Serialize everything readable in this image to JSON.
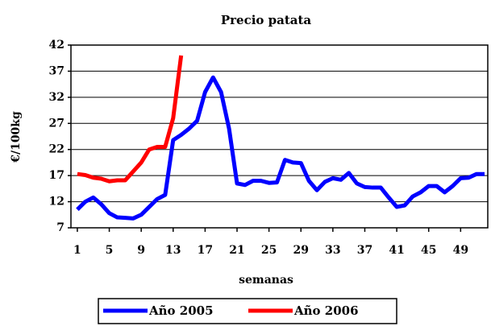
{
  "chart_data": {
    "type": "line",
    "title": "Precio patata",
    "xlabel": "semanas",
    "ylabel": "€/100kg",
    "x": [
      1,
      2,
      3,
      4,
      5,
      6,
      7,
      8,
      9,
      10,
      11,
      12,
      13,
      14,
      15,
      16,
      17,
      18,
      19,
      20,
      21,
      22,
      23,
      24,
      25,
      26,
      27,
      28,
      29,
      30,
      31,
      32,
      33,
      34,
      35,
      36,
      37,
      38,
      39,
      40,
      41,
      42,
      43,
      44,
      45,
      46,
      47,
      48,
      49,
      50,
      51,
      52
    ],
    "xlim": [
      0.2,
      52.4
    ],
    "xticks": [
      1,
      5,
      9,
      13,
      17,
      21,
      25,
      29,
      33,
      37,
      41,
      45,
      49
    ],
    "ylim": [
      7,
      42
    ],
    "yticks": [
      7,
      12,
      17,
      22,
      27,
      32,
      37,
      42
    ],
    "grid": true,
    "legend": "bottom",
    "series": [
      {
        "name": "Año 2005",
        "color": "#0000ff",
        "values": [
          10.5,
          12,
          12.8,
          11.5,
          9.8,
          9,
          8.9,
          8.8,
          9.5,
          11,
          12.5,
          13.3,
          23.8,
          24.8,
          26,
          27.5,
          33,
          35.8,
          33,
          26,
          15.5,
          15.2,
          16,
          16,
          15.6,
          15.7,
          20,
          19.5,
          19.4,
          16,
          14.2,
          15.8,
          16.5,
          16.2,
          17.5,
          15.5,
          14.8,
          14.7,
          14.7,
          12.8,
          11,
          11.3,
          13,
          13.8,
          15,
          15,
          13.8,
          15,
          16.5,
          16.6,
          17.3,
          17.3
        ]
      },
      {
        "name": "Año 2006",
        "color": "#ff0000",
        "values": [
          17.3,
          17.1,
          16.6,
          16.4,
          15.9,
          16.1,
          16.1,
          17.8,
          19.5,
          22,
          22.5,
          22.5,
          28,
          40,
          null,
          null,
          null,
          null,
          null,
          null,
          null,
          null,
          null,
          null,
          null,
          null,
          null,
          null,
          null,
          null,
          null,
          null,
          null,
          null,
          null,
          null,
          null,
          null,
          null,
          null,
          null,
          null,
          null,
          null,
          null,
          null,
          null,
          null,
          null,
          null,
          null,
          null
        ]
      }
    ]
  }
}
